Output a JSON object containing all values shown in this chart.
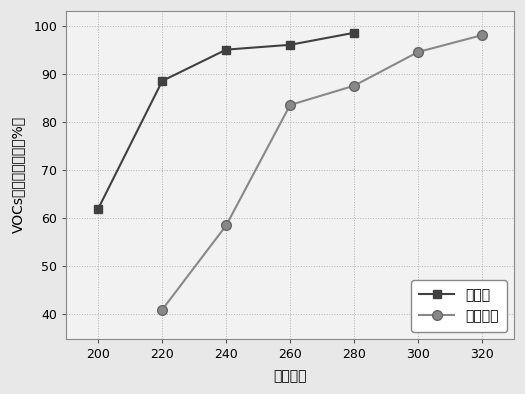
{
  "series1_name": "二甲苯",
  "series2_name": "乙酸乙酯",
  "x": [
    200,
    220,
    240,
    260,
    280,
    300,
    320
  ],
  "series1_y": [
    62,
    88.5,
    95,
    96,
    98.5,
    null,
    null
  ],
  "series2_y": [
    null,
    41,
    58.5,
    83.5,
    87.5,
    94.5,
    98
  ],
  "xlabel": "反应温度",
  "ylabel": "VOCs催化燃烧效率（%）",
  "ylim": [
    35,
    103
  ],
  "xlim": [
    190,
    330
  ],
  "yticks": [
    40,
    50,
    60,
    70,
    80,
    90,
    100
  ],
  "xticks": [
    200,
    220,
    240,
    260,
    280,
    300,
    320
  ],
  "series1_color": "#404040",
  "series2_color": "#888888",
  "series1_marker": "s",
  "series2_marker": "o",
  "series1_markersize": 6,
  "series2_markersize": 7,
  "linewidth": 1.5,
  "legend_loc": "lower right",
  "fig_facecolor": "#e8e8e8",
  "ax_facecolor": "#f2f2f2",
  "label_fontsize": 10,
  "tick_fontsize": 9,
  "legend_fontsize": 10
}
